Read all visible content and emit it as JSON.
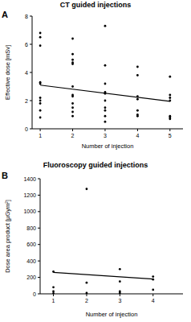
{
  "chart_data": [
    {
      "type": "scatter",
      "title": "CT guided injections",
      "annotations": [
        "A"
      ],
      "x_label": "Number of injection",
      "y_label": "Effective dose [mSv]",
      "xlim": [
        0.75,
        5.4
      ],
      "xticks": [
        1,
        2,
        3,
        4,
        5
      ],
      "ylim": [
        0,
        8
      ],
      "yticks": [
        0,
        2,
        4,
        6,
        8
      ],
      "grid": false,
      "color": "#000000",
      "series": [
        {
          "type": "scatter",
          "marker": "circle",
          "x": [
            1,
            1,
            1,
            1,
            1,
            1,
            1,
            1,
            1,
            1,
            2,
            2,
            2,
            2,
            2,
            2,
            2,
            2,
            2,
            2,
            2,
            2,
            3,
            3,
            3,
            3,
            3,
            3,
            3,
            3,
            3,
            3,
            4,
            4,
            4,
            4,
            4,
            4,
            4,
            5,
            5,
            5,
            5,
            5,
            5,
            5
          ],
          "values": [
            6.8,
            6.5,
            5.9,
            3.3,
            3.2,
            2.2,
            2.0,
            1.8,
            1.3,
            0.8,
            6.4,
            5.3,
            4.9,
            4.7,
            4.6,
            3.0,
            2.4,
            2.3,
            1.8,
            1.5,
            1.2,
            0.9,
            7.3,
            4.5,
            3.2,
            2.6,
            2.5,
            2.0,
            1.5,
            1.3,
            0.9,
            0.5,
            4.4,
            3.8,
            2.3,
            2.1,
            1.3,
            1.0,
            0.9,
            3.7,
            2.4,
            2.2,
            2.0,
            0.9,
            0.8,
            0.7
          ]
        },
        {
          "type": "line",
          "line_style": "solid",
          "x": [
            1,
            5
          ],
          "values": [
            3.1,
            1.95
          ]
        }
      ]
    },
    {
      "type": "scatter",
      "title": "Fluoroscopy guided injections",
      "annotations": [
        "B"
      ],
      "x_label": "Number of injection",
      "y_label": "Dose area product [µGym²]",
      "xlim": [
        0.6,
        4.9
      ],
      "xticks": [
        1,
        2,
        3,
        4
      ],
      "ylim": [
        0,
        1400
      ],
      "yticks": [
        0,
        200,
        400,
        600,
        800,
        1000,
        1200,
        1400
      ],
      "grid": false,
      "color": "#000000",
      "series": [
        {
          "type": "scatter",
          "marker": "circle",
          "x": [
            1,
            1,
            1,
            1,
            2,
            2,
            2,
            3,
            3,
            3,
            3,
            4,
            4,
            4
          ],
          "values": [
            270,
            80,
            30,
            5,
            1275,
            135,
            10,
            300,
            150,
            30,
            10,
            210,
            175,
            50
          ]
        },
        {
          "type": "line",
          "line_style": "solid",
          "x": [
            1,
            4
          ],
          "values": [
            260,
            180
          ]
        }
      ]
    }
  ]
}
